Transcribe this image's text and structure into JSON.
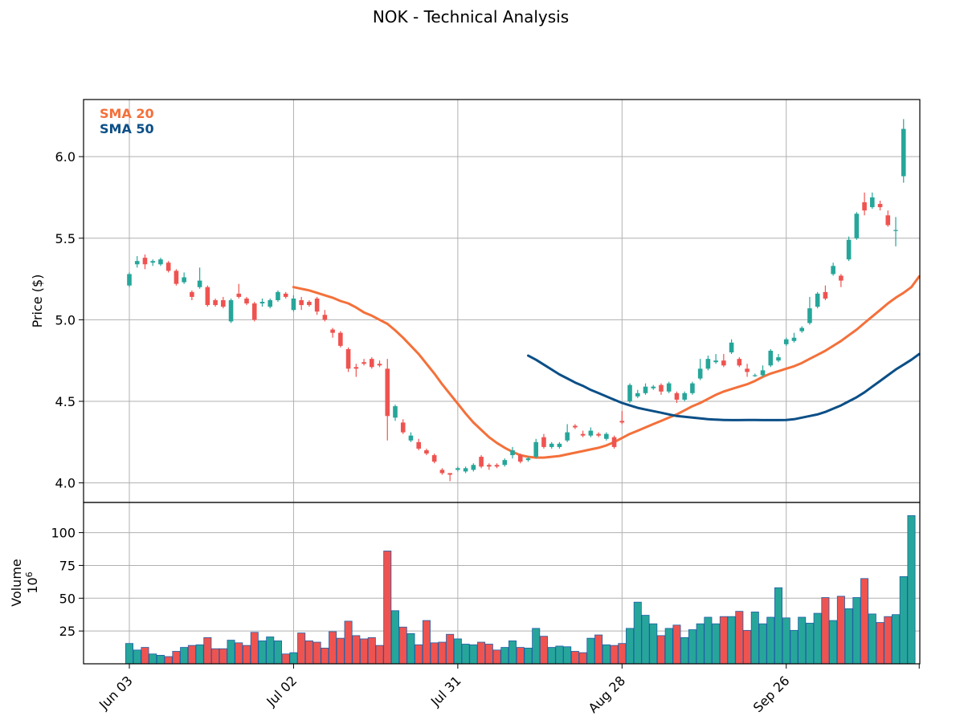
{
  "chart_data": {
    "type": "candlestick",
    "title": "NOK - Technical Analysis",
    "price_axis": {
      "ylabel": "Price ($)",
      "ylim": [
        3.88,
        6.35
      ],
      "ticks": [
        "4.0",
        "4.5",
        "5.0",
        "5.5",
        "6.0"
      ]
    },
    "volume_axis": {
      "ylabel": "Volume",
      "scale_label": "10",
      "scale_exponent": "6",
      "ylim": [
        0,
        123
      ],
      "ticks": [
        "25",
        "50",
        "75",
        "100"
      ]
    },
    "x_tick_labels": [
      {
        "label": "Jun 03",
        "index": 0
      },
      {
        "label": "Jul 02",
        "index": 21
      },
      {
        "label": "Jul 31",
        "index": 42
      },
      {
        "label": "Aug 28",
        "index": 63
      },
      {
        "label": "Sep 26",
        "index": 84
      }
    ],
    "legend": {
      "position": "top-left",
      "entries": [
        "SMA 20",
        "SMA 50"
      ]
    },
    "colors": {
      "up": "#26a69a",
      "down": "#ef5350",
      "sma20": "#f4703a",
      "sma50": "#0b4f87",
      "volume_edge": "#1f5fa8",
      "grid": "#b0b0b0"
    },
    "candles": [
      [
        5.21,
        5.28,
        5.2,
        5.29
      ],
      [
        5.34,
        5.36,
        5.32,
        5.39
      ],
      [
        5.38,
        5.34,
        5.31,
        5.4
      ],
      [
        5.35,
        5.36,
        5.33,
        5.37
      ],
      [
        5.34,
        5.37,
        5.33,
        5.38
      ],
      [
        5.35,
        5.3,
        5.29,
        5.36
      ],
      [
        5.3,
        5.22,
        5.21,
        5.31
      ],
      [
        5.23,
        5.26,
        5.22,
        5.29
      ],
      [
        5.17,
        5.14,
        5.12,
        5.18
      ],
      [
        5.2,
        5.24,
        5.19,
        5.32
      ],
      [
        5.2,
        5.09,
        5.08,
        5.21
      ],
      [
        5.12,
        5.09,
        5.08,
        5.13
      ],
      [
        5.12,
        5.08,
        5.07,
        5.14
      ],
      [
        4.99,
        5.12,
        4.98,
        5.13
      ],
      [
        5.16,
        5.14,
        5.13,
        5.22
      ],
      [
        5.13,
        5.1,
        5.09,
        5.14
      ],
      [
        5.1,
        5.0,
        4.99,
        5.11
      ],
      [
        5.1,
        5.11,
        5.08,
        5.13
      ],
      [
        5.08,
        5.12,
        5.07,
        5.13
      ],
      [
        5.12,
        5.17,
        5.11,
        5.18
      ],
      [
        5.16,
        5.14,
        5.13,
        5.17
      ],
      [
        5.06,
        5.13,
        5.05,
        5.15
      ],
      [
        5.12,
        5.09,
        5.06,
        5.14
      ],
      [
        5.11,
        5.09,
        5.08,
        5.12
      ],
      [
        5.13,
        5.05,
        5.03,
        5.14
      ],
      [
        5.03,
        5.0,
        4.99,
        5.06
      ],
      [
        4.94,
        4.92,
        4.89,
        4.95
      ],
      [
        4.92,
        4.84,
        4.83,
        4.93
      ],
      [
        4.82,
        4.7,
        4.68,
        4.83
      ],
      [
        4.71,
        4.7,
        4.65,
        4.73
      ],
      [
        4.74,
        4.73,
        4.72,
        4.76
      ],
      [
        4.76,
        4.71,
        4.7,
        4.77
      ],
      [
        4.73,
        4.72,
        4.71,
        4.75
      ],
      [
        4.7,
        4.41,
        4.26,
        4.76
      ],
      [
        4.4,
        4.47,
        4.38,
        4.48
      ],
      [
        4.37,
        4.31,
        4.3,
        4.39
      ],
      [
        4.26,
        4.29,
        4.25,
        4.31
      ],
      [
        4.25,
        4.21,
        4.2,
        4.27
      ],
      [
        4.2,
        4.18,
        4.17,
        4.21
      ],
      [
        4.17,
        4.13,
        4.12,
        4.18
      ],
      [
        4.08,
        4.06,
        4.05,
        4.09
      ],
      [
        4.06,
        4.05,
        4.01,
        4.06
      ],
      [
        4.08,
        4.09,
        4.07,
        4.1
      ],
      [
        4.07,
        4.09,
        4.06,
        4.1
      ],
      [
        4.08,
        4.11,
        4.07,
        4.12
      ],
      [
        4.16,
        4.1,
        4.09,
        4.17
      ],
      [
        4.11,
        4.1,
        4.08,
        4.12
      ],
      [
        4.11,
        4.1,
        4.09,
        4.12
      ],
      [
        4.11,
        4.14,
        4.1,
        4.15
      ],
      [
        4.17,
        4.2,
        4.15,
        4.22
      ],
      [
        4.17,
        4.13,
        4.12,
        4.18
      ],
      [
        4.14,
        4.15,
        4.13,
        4.16
      ],
      [
        4.16,
        4.25,
        4.15,
        4.27
      ],
      [
        4.28,
        4.22,
        4.21,
        4.3
      ],
      [
        4.22,
        4.24,
        4.21,
        4.25
      ],
      [
        4.22,
        4.24,
        4.21,
        4.25
      ],
      [
        4.26,
        4.31,
        4.25,
        4.36
      ],
      [
        4.35,
        4.34,
        4.33,
        4.36
      ],
      [
        4.3,
        4.29,
        4.28,
        4.32
      ],
      [
        4.29,
        4.32,
        4.28,
        4.34
      ],
      [
        4.3,
        4.29,
        4.28,
        4.31
      ],
      [
        4.27,
        4.3,
        4.26,
        4.31
      ],
      [
        4.28,
        4.22,
        4.21,
        4.29
      ],
      [
        4.38,
        4.37,
        4.36,
        4.44
      ],
      [
        4.5,
        4.6,
        4.49,
        4.61
      ],
      [
        4.53,
        4.55,
        4.52,
        4.57
      ],
      [
        4.55,
        4.59,
        4.54,
        4.61
      ],
      [
        4.58,
        4.59,
        4.57,
        4.6
      ],
      [
        4.6,
        4.56,
        4.54,
        4.61
      ],
      [
        4.56,
        4.61,
        4.55,
        4.62
      ],
      [
        4.55,
        4.51,
        4.49,
        4.56
      ],
      [
        4.51,
        4.55,
        4.5,
        4.56
      ],
      [
        4.55,
        4.61,
        4.54,
        4.62
      ],
      [
        4.64,
        4.7,
        4.63,
        4.76
      ],
      [
        4.7,
        4.76,
        4.69,
        4.78
      ],
      [
        4.74,
        4.75,
        4.73,
        4.79
      ],
      [
        4.75,
        4.72,
        4.71,
        4.79
      ],
      [
        4.8,
        4.86,
        4.79,
        4.88
      ],
      [
        4.76,
        4.72,
        4.71,
        4.77
      ],
      [
        4.7,
        4.68,
        4.65,
        4.73
      ],
      [
        4.66,
        4.66,
        4.65,
        4.67
      ],
      [
        4.66,
        4.69,
        4.65,
        4.72
      ],
      [
        4.72,
        4.81,
        4.71,
        4.82
      ],
      [
        4.75,
        4.77,
        4.74,
        4.79
      ],
      [
        4.85,
        4.88,
        4.84,
        4.89
      ],
      [
        4.87,
        4.89,
        4.86,
        4.92
      ],
      [
        4.93,
        4.95,
        4.92,
        4.96
      ],
      [
        4.98,
        5.07,
        4.97,
        5.14
      ],
      [
        5.08,
        5.16,
        5.07,
        5.17
      ],
      [
        5.17,
        5.13,
        5.12,
        5.21
      ],
      [
        5.28,
        5.33,
        5.27,
        5.35
      ],
      [
        5.27,
        5.24,
        5.2,
        5.28
      ],
      [
        5.37,
        5.49,
        5.36,
        5.51
      ],
      [
        5.5,
        5.65,
        5.49,
        5.66
      ],
      [
        5.72,
        5.67,
        5.64,
        5.78
      ],
      [
        5.69,
        5.75,
        5.68,
        5.78
      ],
      [
        5.71,
        5.69,
        5.67,
        5.73
      ],
      [
        5.64,
        5.58,
        5.57,
        5.67
      ],
      [
        5.55,
        5.55,
        5.45,
        5.63
      ],
      [
        5.88,
        6.17,
        5.84,
        6.23
      ]
    ],
    "volume": [
      15.5,
      10.5,
      12.5,
      7.5,
      6.5,
      5.5,
      9.5,
      12.5,
      14.0,
      14.5,
      20.0,
      11.5,
      11.5,
      18.0,
      16.0,
      14.0,
      24.0,
      17.5,
      20.5,
      17.5,
      7.5,
      8.5,
      23.5,
      17.5,
      16.5,
      12.0,
      24.5,
      19.5,
      32.5,
      21.5,
      19.0,
      20.0,
      14.0,
      86.0,
      40.5,
      28.0,
      23.0,
      14.5,
      33.0,
      16.0,
      16.5,
      22.5,
      19.0,
      15.0,
      14.5,
      16.5,
      15.0,
      10.5,
      12.5,
      17.5,
      12.5,
      12.0,
      27.0,
      21.0,
      12.5,
      13.5,
      13.0,
      9.5,
      8.5,
      19.5,
      22.0,
      14.5,
      14.0,
      15.5,
      27.0,
      47.0,
      37.0,
      30.5,
      21.5,
      27.0,
      29.5,
      20.0,
      26.0,
      30.5,
      35.5,
      30.5,
      36.0,
      36.0,
      40.0,
      25.5,
      39.5,
      30.5,
      35.5,
      58.0,
      35.0,
      25.5,
      35.5,
      31.0,
      38.5,
      50.5,
      33.0,
      51.5,
      42.0,
      50.5,
      65.0,
      38.0,
      31.5,
      36.0,
      37.5,
      66.5,
      113.0
    ],
    "sma20": [
      [
        21,
        5.2
      ],
      [
        22,
        5.19
      ],
      [
        23,
        5.18
      ],
      [
        24,
        5.165
      ],
      [
        25,
        5.15
      ],
      [
        26,
        5.135
      ],
      [
        27,
        5.115
      ],
      [
        28,
        5.1
      ],
      [
        29,
        5.075
      ],
      [
        30,
        5.045
      ],
      [
        31,
        5.025
      ],
      [
        32,
        5.0
      ],
      [
        33,
        4.975
      ],
      [
        34,
        4.935
      ],
      [
        35,
        4.89
      ],
      [
        36,
        4.84
      ],
      [
        37,
        4.79
      ],
      [
        38,
        4.73
      ],
      [
        39,
        4.67
      ],
      [
        40,
        4.605
      ],
      [
        41,
        4.545
      ],
      [
        42,
        4.485
      ],
      [
        43,
        4.425
      ],
      [
        44,
        4.37
      ],
      [
        45,
        4.325
      ],
      [
        46,
        4.28
      ],
      [
        47,
        4.245
      ],
      [
        48,
        4.215
      ],
      [
        49,
        4.19
      ],
      [
        50,
        4.17
      ],
      [
        51,
        4.16
      ],
      [
        52,
        4.155
      ],
      [
        53,
        4.155
      ],
      [
        54,
        4.16
      ],
      [
        55,
        4.165
      ],
      [
        56,
        4.175
      ],
      [
        57,
        4.185
      ],
      [
        58,
        4.195
      ],
      [
        59,
        4.205
      ],
      [
        60,
        4.215
      ],
      [
        61,
        4.23
      ],
      [
        62,
        4.25
      ],
      [
        63,
        4.275
      ],
      [
        64,
        4.3
      ],
      [
        65,
        4.32
      ],
      [
        66,
        4.34
      ],
      [
        67,
        4.36
      ],
      [
        68,
        4.38
      ],
      [
        69,
        4.4
      ],
      [
        70,
        4.42
      ],
      [
        71,
        4.445
      ],
      [
        72,
        4.47
      ],
      [
        73,
        4.49
      ],
      [
        74,
        4.515
      ],
      [
        75,
        4.54
      ],
      [
        76,
        4.56
      ],
      [
        77,
        4.575
      ],
      [
        78,
        4.59
      ],
      [
        79,
        4.605
      ],
      [
        80,
        4.625
      ],
      [
        81,
        4.65
      ],
      [
        82,
        4.67
      ],
      [
        83,
        4.685
      ],
      [
        84,
        4.7
      ],
      [
        85,
        4.715
      ],
      [
        86,
        4.735
      ],
      [
        87,
        4.76
      ],
      [
        88,
        4.785
      ],
      [
        89,
        4.81
      ],
      [
        90,
        4.84
      ],
      [
        91,
        4.87
      ],
      [
        92,
        4.905
      ],
      [
        93,
        4.94
      ],
      [
        94,
        4.98
      ],
      [
        95,
        5.02
      ],
      [
        96,
        5.06
      ],
      [
        97,
        5.1
      ],
      [
        98,
        5.135
      ],
      [
        99,
        5.165
      ],
      [
        100,
        5.2
      ],
      [
        101,
        5.265
      ]
    ],
    "sma50": [
      [
        51,
        4.78
      ],
      [
        52,
        4.755
      ],
      [
        53,
        4.725
      ],
      [
        54,
        4.695
      ],
      [
        55,
        4.665
      ],
      [
        56,
        4.64
      ],
      [
        57,
        4.615
      ],
      [
        58,
        4.595
      ],
      [
        59,
        4.57
      ],
      [
        60,
        4.55
      ],
      [
        61,
        4.53
      ],
      [
        62,
        4.51
      ],
      [
        63,
        4.49
      ],
      [
        64,
        4.475
      ],
      [
        65,
        4.46
      ],
      [
        66,
        4.45
      ],
      [
        67,
        4.44
      ],
      [
        68,
        4.43
      ],
      [
        69,
        4.42
      ],
      [
        70,
        4.41
      ],
      [
        71,
        4.405
      ],
      [
        72,
        4.4
      ],
      [
        73,
        4.395
      ],
      [
        74,
        4.39
      ],
      [
        75,
        4.388
      ],
      [
        76,
        4.386
      ],
      [
        77,
        4.385
      ],
      [
        78,
        4.385
      ],
      [
        79,
        4.386
      ],
      [
        80,
        4.386
      ],
      [
        81,
        4.385
      ],
      [
        82,
        4.385
      ],
      [
        83,
        4.385
      ],
      [
        84,
        4.386
      ],
      [
        85,
        4.39
      ],
      [
        86,
        4.4
      ],
      [
        87,
        4.41
      ],
      [
        88,
        4.42
      ],
      [
        89,
        4.435
      ],
      [
        90,
        4.455
      ],
      [
        91,
        4.475
      ],
      [
        92,
        4.5
      ],
      [
        93,
        4.525
      ],
      [
        94,
        4.555
      ],
      [
        95,
        4.59
      ],
      [
        96,
        4.625
      ],
      [
        97,
        4.66
      ],
      [
        98,
        4.695
      ],
      [
        99,
        4.725
      ],
      [
        100,
        4.755
      ],
      [
        101,
        4.79
      ]
    ]
  }
}
